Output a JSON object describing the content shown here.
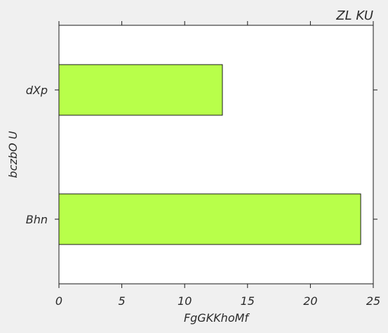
{
  "chart_data": {
    "type": "bar",
    "orientation": "horizontal",
    "title": "ZL KU",
    "xlabel": "FgGKKhoMf",
    "ylabel": "bczbO U",
    "categories": [
      "Bhn",
      "dXp"
    ],
    "values": [
      24,
      13
    ],
    "xlim": [
      0,
      25
    ],
    "x_ticks": [
      "0",
      "5",
      "10",
      "15",
      "20",
      "25"
    ],
    "grid": false,
    "bar_color": "#b8ff4a",
    "edge_color": "#1a1a1a",
    "plot_background": "#ffffff",
    "figure_background": "#f0f0f0"
  }
}
